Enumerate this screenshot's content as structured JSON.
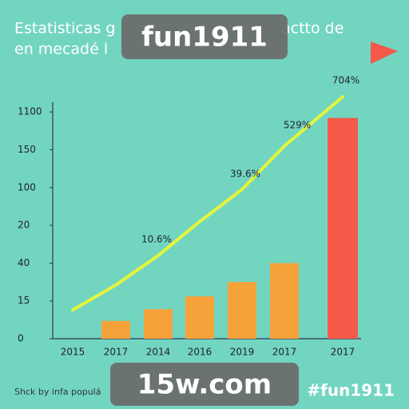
{
  "chart_data": {
    "type": "bar",
    "title": [
      "Estatisticas g",
      "actto de",
      "en mecadé l"
    ],
    "categories": [
      "2015",
      "2017",
      "2014",
      "2016",
      "2019",
      "2017",
      "2017"
    ],
    "series": [
      {
        "type": "bar",
        "colors": [
          null,
          "#f6a23a",
          "#f6a23a",
          "#f6a23a",
          "#f6a23a",
          "#f6a23a",
          "#f4594a"
        ],
        "values": [
          null,
          0.47,
          0.78,
          1.12,
          1.5,
          2.0,
          5.84
        ]
      },
      {
        "type": "line",
        "color": "#e4f53c",
        "values": [
          0.76,
          1.42,
          2.2,
          3.1,
          3.95,
          5.1,
          6.4
        ]
      }
    ],
    "annotations": [
      "10.6%",
      "39.6%",
      "529%",
      "704%"
    ],
    "ylim": [
      0,
      6.5
    ],
    "yticks": [
      {
        "value": 0,
        "label": "0"
      },
      {
        "value": 1,
        "label": "15"
      },
      {
        "value": 2,
        "label": "40"
      },
      {
        "value": 3,
        "label": "20"
      },
      {
        "value": 4,
        "label": "100"
      },
      {
        "value": 5,
        "label": "150"
      },
      {
        "value": 6,
        "label": "1100"
      }
    ],
    "grid": false,
    "footnote": "Shck by infa populá",
    "watermarks": [
      "fun1911",
      "15w.com",
      "#fun1911"
    ]
  }
}
